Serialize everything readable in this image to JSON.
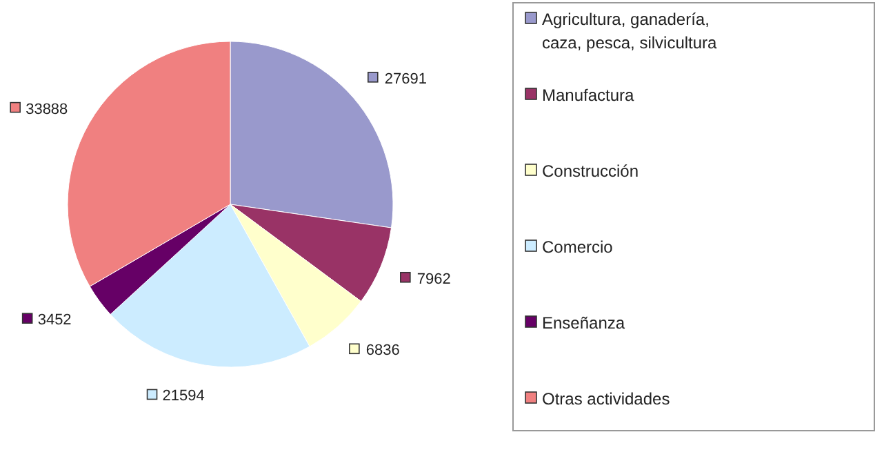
{
  "chart_data": {
    "type": "pie",
    "categories": [
      "Agricultura, ganadería, caza, pesca, silvicultura",
      "Manufactura",
      "Construcción",
      "Comercio",
      "Enseñanza",
      "Otras actividades"
    ],
    "values": [
      27691,
      7962,
      6836,
      21594,
      3452,
      33888
    ],
    "colors": [
      "#9999cc",
      "#993366",
      "#ffffcc",
      "#ccecff",
      "#660066",
      "#f08080"
    ],
    "data_labels": true,
    "legend": "right"
  }
}
